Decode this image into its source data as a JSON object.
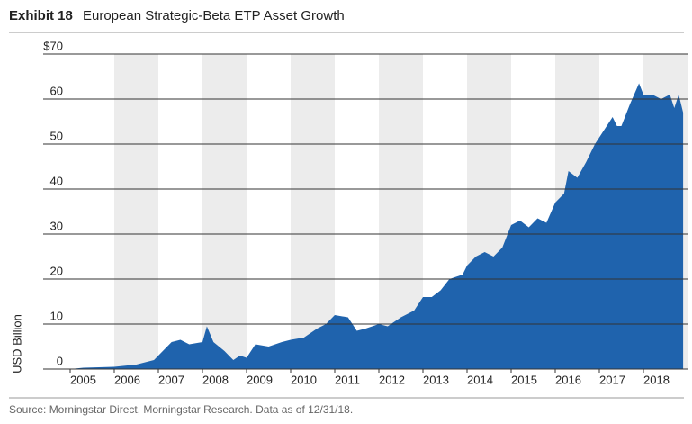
{
  "chart_data": {
    "type": "area",
    "exhibit": "Exhibit 18",
    "title": "European Strategic-Beta ETP Asset Growth",
    "ylabel": "USD Billion",
    "source": "Source: Morningstar Direct, Morningstar Research. Data as of 12/31/18.",
    "color": "#1f63ad",
    "grid": true,
    "xlim": [
      2005,
      2019
    ],
    "xticks": [
      2005,
      2006,
      2007,
      2008,
      2009,
      2010,
      2011,
      2012,
      2013,
      2014,
      2015,
      2016,
      2017,
      2018
    ],
    "ylim": [
      0,
      70
    ],
    "yticks": [
      0,
      10,
      20,
      30,
      40,
      50,
      60,
      {
        "value": 70,
        "label": "$70"
      }
    ],
    "x": [
      2005.0,
      2005.3,
      2006.0,
      2006.5,
      2006.9,
      2007.1,
      2007.3,
      2007.5,
      2007.7,
      2008.0,
      2008.1,
      2008.25,
      2008.5,
      2008.7,
      2008.85,
      2009.0,
      2009.2,
      2009.5,
      2009.8,
      2010.0,
      2010.3,
      2010.6,
      2010.8,
      2011.0,
      2011.3,
      2011.5,
      2011.7,
      2012.0,
      2012.2,
      2012.5,
      2012.8,
      2013.0,
      2013.2,
      2013.4,
      2013.6,
      2013.9,
      2014.0,
      2014.2,
      2014.4,
      2014.6,
      2014.8,
      2015.0,
      2015.2,
      2015.4,
      2015.6,
      2015.8,
      2016.0,
      2016.2,
      2016.3,
      2016.5,
      2016.7,
      2016.9,
      2017.1,
      2017.3,
      2017.4,
      2017.5,
      2017.7,
      2017.9,
      2018.0,
      2018.2,
      2018.4,
      2018.6,
      2018.7,
      2018.8,
      2018.9
    ],
    "values": [
      0,
      0.3,
      0.5,
      1,
      2,
      4,
      6,
      6.5,
      5.5,
      6,
      9.5,
      6,
      4,
      2,
      3,
      2.5,
      5.5,
      5,
      6,
      6.5,
      7,
      9,
      10,
      12,
      11.5,
      8.5,
      9,
      10,
      9.5,
      11.5,
      13,
      16,
      16,
      17.5,
      20,
      21,
      23,
      25,
      26,
      25,
      27,
      32,
      33,
      31.5,
      33.5,
      32.5,
      37,
      39,
      44,
      42.5,
      46,
      50,
      53,
      56,
      54,
      54,
      59,
      63.5,
      61,
      61,
      60,
      61,
      58,
      61,
      57
    ]
  }
}
